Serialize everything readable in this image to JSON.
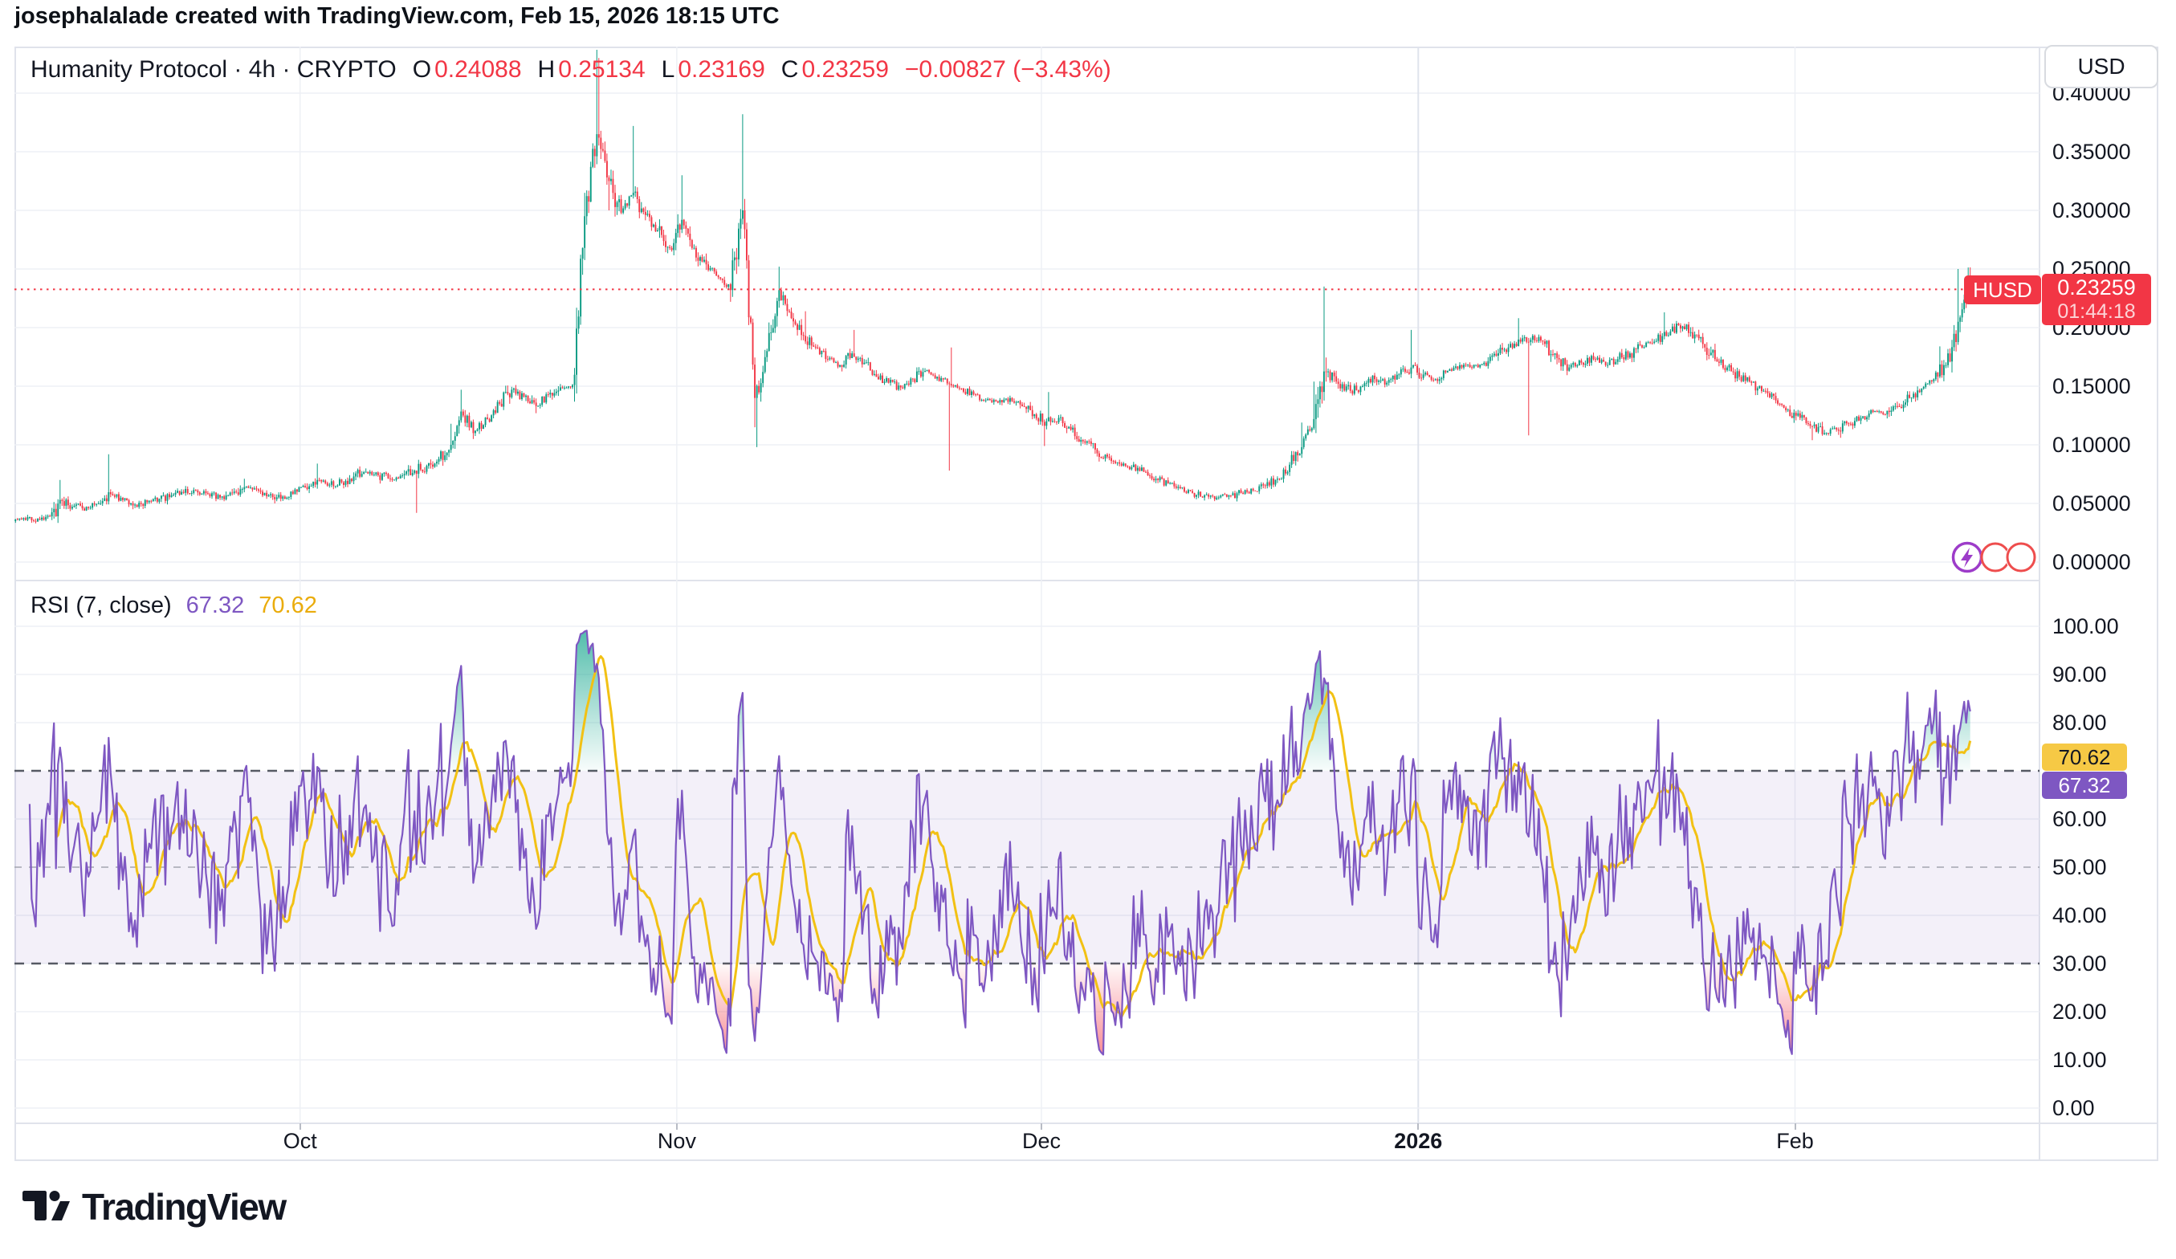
{
  "header": {
    "attribution": "josephalalade created with TradingView.com, Feb 15, 2026 18:15 UTC"
  },
  "legend": {
    "symbol": "Humanity Protocol",
    "interval": "4h",
    "exchange": "CRYPTO",
    "title_display": "Humanity Protocol · 4h · CRYPTO",
    "o_label": "O",
    "o_value": "0.24088",
    "h_label": "H",
    "h_value": "0.25134",
    "l_label": "L",
    "l_value": "0.23169",
    "c_label": "C",
    "c_value": "0.23259",
    "change_display": "−0.00827 (−3.43%)"
  },
  "rsi_legend": {
    "title": "RSI (7, close)",
    "rsi_value": "67.32",
    "ma_value": "70.62"
  },
  "price_axis": {
    "currency": "USD",
    "tick_labels": [
      "0.40000",
      "0.35000",
      "0.30000",
      "0.25000",
      "0.20000",
      "0.15000",
      "0.10000",
      "0.05000",
      "0.00000"
    ],
    "tick_values": [
      0.4,
      0.35,
      0.3,
      0.25,
      0.2,
      0.15,
      0.1,
      0.05,
      0.0
    ],
    "last_price": "0.23259",
    "countdown": "01:44:18",
    "symbol_tag": "HUSD"
  },
  "rsi_axis": {
    "tick_labels": [
      "100.00",
      "90.00",
      "80.00",
      "60.00",
      "50.00",
      "40.00",
      "30.00",
      "20.00",
      "10.00",
      "0.00"
    ],
    "tick_values": [
      100,
      90,
      80,
      60,
      50,
      40,
      30,
      20,
      10,
      0
    ],
    "ma_label": "70.62",
    "rsi_label": "67.32"
  },
  "time_axis": {
    "labels": [
      {
        "text": "Oct",
        "day": 23,
        "bold": false
      },
      {
        "text": "Nov",
        "day": 54,
        "bold": false
      },
      {
        "text": "Dec",
        "day": 84,
        "bold": false
      },
      {
        "text": "2026",
        "day": 115,
        "bold": true
      },
      {
        "text": "Feb",
        "day": 146,
        "bold": false
      }
    ]
  },
  "footer": {
    "logo_text": "TradingView"
  },
  "colors": {
    "up": "#089981",
    "down": "#f23645",
    "last_price": "#f23645",
    "rsi_line": "#7e57c2",
    "rsi_ma": "#f2c114",
    "rsi_band_fill": "rgba(126,87,194,0.09)",
    "grid": "#eef0f5",
    "grid_year": "#dfe3ec",
    "border": "#e0e3eb",
    "text": "#131722"
  },
  "chart_data": [
    {
      "type": "candlestick",
      "title": "Humanity Protocol · 4h · CRYPTO",
      "symbol": "Humanity Protocol",
      "ticker_tag": "HUSD",
      "interval": "4h",
      "exchange": "CRYPTO",
      "currency": "USD",
      "current_ohlc": {
        "open": 0.24088,
        "high": 0.25134,
        "low": 0.23169,
        "close": 0.23259,
        "change": -0.00827,
        "change_pct": -3.43
      },
      "last_price_line": 0.23259,
      "countdown": "01:44:18",
      "ylim": [
        0.0,
        0.44
      ],
      "y_ticks": [
        0.4,
        0.35,
        0.3,
        0.25,
        0.2,
        0.15,
        0.1,
        0.05,
        0.0
      ],
      "x_labels": [
        "Oct",
        "Nov",
        "Dec",
        "2026",
        "Feb"
      ],
      "anchor_note": "Price path read from chart, one anchor per day starting Sep 8 2025; entries are [close, spike_high|null, spike_low|null]; rendered as 6 4h candles per day",
      "daily_anchors": [
        [
          0.036,
          null,
          null
        ],
        [
          0.037,
          null,
          null
        ],
        [
          0.039,
          null,
          null
        ],
        [
          0.052,
          0.07,
          null
        ],
        [
          0.048,
          null,
          null
        ],
        [
          0.047,
          null,
          null
        ],
        [
          0.05,
          null,
          null
        ],
        [
          0.058,
          0.092,
          null
        ],
        [
          0.053,
          null,
          null
        ],
        [
          0.049,
          null,
          0.045
        ],
        [
          0.051,
          null,
          null
        ],
        [
          0.054,
          null,
          null
        ],
        [
          0.057,
          null,
          null
        ],
        [
          0.059,
          null,
          null
        ],
        [
          0.061,
          null,
          null
        ],
        [
          0.058,
          null,
          null
        ],
        [
          0.055,
          null,
          null
        ],
        [
          0.059,
          null,
          null
        ],
        [
          0.064,
          0.071,
          null
        ],
        [
          0.062,
          null,
          null
        ],
        [
          0.057,
          null,
          null
        ],
        [
          0.054,
          null,
          0.05
        ],
        [
          0.058,
          null,
          null
        ],
        [
          0.064,
          null,
          null
        ],
        [
          0.07,
          0.084,
          null
        ],
        [
          0.066,
          null,
          null
        ],
        [
          0.068,
          null,
          null
        ],
        [
          0.073,
          null,
          null
        ],
        [
          0.077,
          null,
          null
        ],
        [
          0.074,
          null,
          null
        ],
        [
          0.071,
          null,
          null
        ],
        [
          0.074,
          null,
          null
        ],
        [
          0.078,
          null,
          null
        ],
        [
          0.082,
          null,
          0.042
        ],
        [
          0.088,
          null,
          null
        ],
        [
          0.1,
          0.118,
          null
        ],
        [
          0.125,
          0.147,
          null
        ],
        [
          0.112,
          null,
          0.105
        ],
        [
          0.122,
          null,
          null
        ],
        [
          0.135,
          null,
          null
        ],
        [
          0.147,
          null,
          null
        ],
        [
          0.141,
          null,
          null
        ],
        [
          0.133,
          null,
          0.127
        ],
        [
          0.143,
          null,
          null
        ],
        [
          0.149,
          null,
          null
        ],
        [
          0.151,
          null,
          null
        ],
        [
          0.295,
          0.315,
          0.148
        ],
        [
          0.365,
          0.437,
          null
        ],
        [
          0.325,
          0.43,
          0.3
        ],
        [
          0.298,
          null,
          null
        ],
        [
          0.315,
          0.372,
          null
        ],
        [
          0.296,
          null,
          null
        ],
        [
          0.283,
          null,
          null
        ],
        [
          0.268,
          null,
          null
        ],
        [
          0.292,
          0.33,
          null
        ],
        [
          0.268,
          null,
          null
        ],
        [
          0.254,
          null,
          null
        ],
        [
          0.243,
          null,
          null
        ],
        [
          0.232,
          null,
          0.222
        ],
        [
          0.3,
          0.382,
          null
        ],
        [
          0.14,
          null,
          0.115
        ],
        [
          0.18,
          null,
          0.098
        ],
        [
          0.232,
          0.252,
          null
        ],
        [
          0.208,
          null,
          null
        ],
        [
          0.193,
          null,
          null
        ],
        [
          0.183,
          0.214,
          null
        ],
        [
          0.173,
          null,
          null
        ],
        [
          0.168,
          null,
          null
        ],
        [
          0.178,
          null,
          null
        ],
        [
          0.17,
          0.198,
          null
        ],
        [
          0.158,
          null,
          null
        ],
        [
          0.153,
          null,
          null
        ],
        [
          0.149,
          null,
          null
        ],
        [
          0.156,
          null,
          null
        ],
        [
          0.163,
          null,
          null
        ],
        [
          0.158,
          null,
          null
        ],
        [
          0.152,
          null,
          0.078
        ],
        [
          0.148,
          0.183,
          null
        ],
        [
          0.143,
          null,
          null
        ],
        [
          0.138,
          null,
          null
        ],
        [
          0.136,
          null,
          null
        ],
        [
          0.14,
          null,
          null
        ],
        [
          0.133,
          null,
          null
        ],
        [
          0.126,
          null,
          null
        ],
        [
          0.12,
          null,
          0.099
        ],
        [
          0.123,
          0.145,
          null
        ],
        [
          0.113,
          null,
          null
        ],
        [
          0.103,
          null,
          null
        ],
        [
          0.096,
          null,
          null
        ],
        [
          0.09,
          null,
          null
        ],
        [
          0.084,
          null,
          null
        ],
        [
          0.081,
          null,
          null
        ],
        [
          0.077,
          null,
          null
        ],
        [
          0.071,
          null,
          null
        ],
        [
          0.067,
          null,
          null
        ],
        [
          0.063,
          null,
          null
        ],
        [
          0.059,
          null,
          null
        ],
        [
          0.057,
          null,
          null
        ],
        [
          0.055,
          null,
          null
        ],
        [
          0.057,
          null,
          null
        ],
        [
          0.059,
          null,
          null
        ],
        [
          0.061,
          null,
          null
        ],
        [
          0.065,
          null,
          null
        ],
        [
          0.071,
          null,
          null
        ],
        [
          0.083,
          null,
          null
        ],
        [
          0.098,
          0.119,
          null
        ],
        [
          0.122,
          0.154,
          null
        ],
        [
          0.162,
          0.235,
          null
        ],
        [
          0.152,
          null,
          null
        ],
        [
          0.146,
          null,
          null
        ],
        [
          0.15,
          null,
          null
        ],
        [
          0.156,
          null,
          null
        ],
        [
          0.153,
          null,
          null
        ],
        [
          0.16,
          null,
          null
        ],
        [
          0.166,
          0.198,
          null
        ],
        [
          0.16,
          null,
          null
        ],
        [
          0.156,
          null,
          null
        ],
        [
          0.163,
          null,
          null
        ],
        [
          0.168,
          null,
          null
        ],
        [
          0.166,
          null,
          null
        ],
        [
          0.17,
          null,
          null
        ],
        [
          0.176,
          null,
          null
        ],
        [
          0.183,
          null,
          null
        ],
        [
          0.188,
          0.208,
          null
        ],
        [
          0.193,
          null,
          0.108
        ],
        [
          0.186,
          null,
          null
        ],
        [
          0.174,
          null,
          null
        ],
        [
          0.166,
          null,
          null
        ],
        [
          0.17,
          null,
          null
        ],
        [
          0.173,
          null,
          null
        ],
        [
          0.168,
          null,
          null
        ],
        [
          0.173,
          null,
          null
        ],
        [
          0.178,
          null,
          null
        ],
        [
          0.183,
          null,
          null
        ],
        [
          0.188,
          null,
          null
        ],
        [
          0.193,
          0.213,
          null
        ],
        [
          0.202,
          null,
          null
        ],
        [
          0.196,
          null,
          null
        ],
        [
          0.186,
          null,
          null
        ],
        [
          0.173,
          null,
          null
        ],
        [
          0.166,
          null,
          null
        ],
        [
          0.158,
          null,
          null
        ],
        [
          0.153,
          null,
          null
        ],
        [
          0.146,
          null,
          null
        ],
        [
          0.138,
          null,
          null
        ],
        [
          0.13,
          null,
          null
        ],
        [
          0.123,
          null,
          null
        ],
        [
          0.116,
          null,
          0.104
        ],
        [
          0.11,
          null,
          null
        ],
        [
          0.113,
          null,
          null
        ],
        [
          0.118,
          null,
          0.106
        ],
        [
          0.123,
          null,
          null
        ],
        [
          0.128,
          null,
          null
        ],
        [
          0.126,
          null,
          null
        ],
        [
          0.133,
          null,
          null
        ],
        [
          0.14,
          null,
          null
        ],
        [
          0.148,
          null,
          null
        ],
        [
          0.156,
          null,
          null
        ],
        [
          0.168,
          0.184,
          null
        ],
        [
          0.205,
          0.25,
          0.192
        ],
        [
          0.23259,
          0.2513,
          0.196
        ]
      ],
      "time_label_days": [
        23,
        54,
        84,
        115,
        146
      ]
    },
    {
      "type": "line",
      "name": "RSI",
      "params": {
        "length": 7,
        "source": "close"
      },
      "current_value": 67.32,
      "ma_current_value": 70.62,
      "levels": {
        "overbought": 70,
        "middle": 50,
        "oversold": 30
      },
      "range": [
        0,
        100
      ],
      "y_ticks": [
        100,
        90,
        80,
        60,
        50,
        40,
        30,
        20,
        10,
        0
      ]
    }
  ]
}
